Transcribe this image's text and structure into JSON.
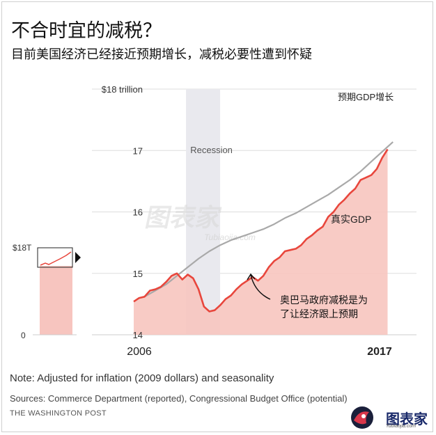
{
  "header": {
    "title": "不合时宜的减税？",
    "subtitle": "目前美国经济已经接近预期增长，减税必要性遭到怀疑"
  },
  "footer": {
    "note": "Note: Adjusted for inflation (2009 dollars) and seasonality",
    "sources": "Sources: Commerce Department (reported), Congressional Budget Office (potential)",
    "credit": "THE WASHINGTON POST"
  },
  "watermark": {
    "name": "图表家",
    "sub": "Tubiaojia.com"
  },
  "inset": {
    "top_label": "$18T",
    "bottom_label": "0"
  },
  "colors": {
    "actual_line": "#e8463c",
    "actual_fill": "#f7c5bf",
    "potential_line": "#a9a9a9",
    "recession_band": "#e9e9ee",
    "grid": "#dddddd"
  },
  "chart_data": {
    "type": "line",
    "title": "",
    "xlabel": "",
    "ylabel": "",
    "unit": "trillion",
    "y_ticks": [
      "$18 trillion",
      "17",
      "16",
      "15",
      "14"
    ],
    "x_ticks": [
      "2006",
      "2017"
    ],
    "xlim": [
      2005.5,
      2017.75
    ],
    "ylim": [
      14,
      18
    ],
    "grid": true,
    "recession": {
      "label": "Recession",
      "start": 2007.92,
      "end": 2009.5
    },
    "series": [
      {
        "name": "真实GDP",
        "x": [
          2005.5,
          2005.75,
          2006.0,
          2006.25,
          2006.5,
          2006.75,
          2007.0,
          2007.25,
          2007.5,
          2007.75,
          2008.0,
          2008.25,
          2008.5,
          2008.75,
          2009.0,
          2009.25,
          2009.5,
          2009.75,
          2010.0,
          2010.25,
          2010.5,
          2010.75,
          2011.0,
          2011.25,
          2011.5,
          2011.75,
          2012.0,
          2012.25,
          2012.5,
          2012.75,
          2013.0,
          2013.25,
          2013.5,
          2013.75,
          2014.0,
          2014.25,
          2014.5,
          2014.75,
          2015.0,
          2015.25,
          2015.5,
          2015.75,
          2016.0,
          2016.25,
          2016.5,
          2016.75,
          2017.0,
          2017.25
        ],
        "values": [
          14.54,
          14.6,
          14.62,
          14.72,
          14.74,
          14.78,
          14.86,
          14.96,
          15.0,
          14.9,
          14.98,
          14.92,
          14.74,
          14.46,
          14.38,
          14.4,
          14.48,
          14.58,
          14.64,
          14.74,
          14.82,
          14.88,
          14.94,
          14.88,
          14.96,
          15.1,
          15.2,
          15.26,
          15.36,
          15.38,
          15.4,
          15.46,
          15.56,
          15.62,
          15.7,
          15.76,
          15.92,
          16.0,
          16.12,
          16.2,
          16.3,
          16.38,
          16.52,
          16.56,
          16.6,
          16.7,
          16.88,
          17.02
        ]
      },
      {
        "name": "预期GDP增长",
        "x": [
          2006.0,
          2006.5,
          2007.0,
          2007.5,
          2008.0,
          2008.5,
          2009.0,
          2009.5,
          2010.0,
          2010.5,
          2011.0,
          2011.5,
          2012.0,
          2012.5,
          2013.0,
          2013.5,
          2014.0,
          2014.5,
          2015.0,
          2015.5,
          2016.0,
          2016.5,
          2017.0,
          2017.5
        ],
        "values": [
          14.62,
          14.72,
          14.82,
          14.96,
          15.1,
          15.24,
          15.36,
          15.46,
          15.54,
          15.6,
          15.66,
          15.72,
          15.8,
          15.9,
          15.98,
          16.08,
          16.18,
          16.28,
          16.4,
          16.52,
          16.66,
          16.82,
          16.98,
          17.14
        ]
      }
    ],
    "annotations": [
      {
        "text": "奥巴马政府减税是为了让经济跟上预期",
        "x": 2011.2,
        "y": 14.95
      }
    ]
  }
}
